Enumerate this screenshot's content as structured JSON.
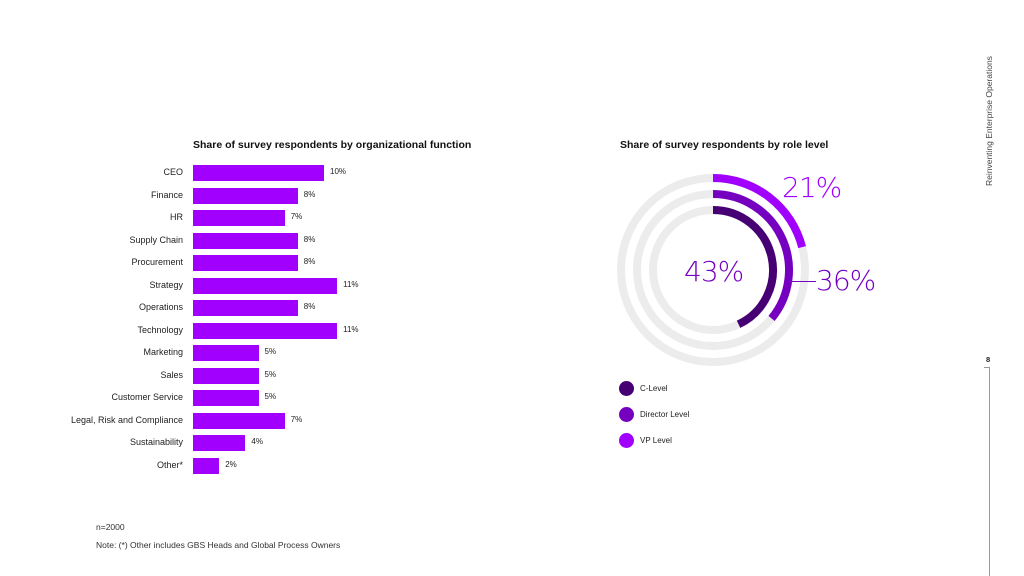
{
  "side_title": "Reinventing Enterprise Operations",
  "page_number": "8",
  "colors": {
    "accent": "#a100ff",
    "c_level": "#460073",
    "director": "#7500c0",
    "vp": "#a100ff",
    "track": "#ececec"
  },
  "chart_data": [
    {
      "type": "bar",
      "orientation": "horizontal",
      "title": "Share of survey respondents by organizational function",
      "categories": [
        "CEO",
        "Finance",
        "HR",
        "Supply Chain",
        "Procurement",
        "Strategy",
        "Operations",
        "Technology",
        "Marketing",
        "Sales",
        "Customer Service",
        "Legal, Risk and Compliance",
        "Sustainability",
        "Other*"
      ],
      "values": [
        10,
        8,
        7,
        8,
        8,
        11,
        8,
        11,
        5,
        5,
        5,
        7,
        4,
        2
      ],
      "value_labels": [
        "10%",
        "8%",
        "7%",
        "8%",
        "8%",
        "11%",
        "8%",
        "11%",
        "5%",
        "5%",
        "5%",
        "7%",
        "4%",
        "2%"
      ],
      "unit": "%"
    },
    {
      "type": "pie",
      "style": "concentric-rings",
      "title": "Share of survey respondents by role level",
      "series": [
        {
          "name": "C-Level",
          "value": 43,
          "label": "43%"
        },
        {
          "name": "Director Level",
          "value": 36,
          "label": "36%"
        },
        {
          "name": "VP Level",
          "value": 21,
          "label": "21%"
        }
      ]
    }
  ],
  "footnotes": {
    "sample": "n=2000",
    "note": "Note: (*) Other includes GBS Heads and Global Process Owners"
  }
}
